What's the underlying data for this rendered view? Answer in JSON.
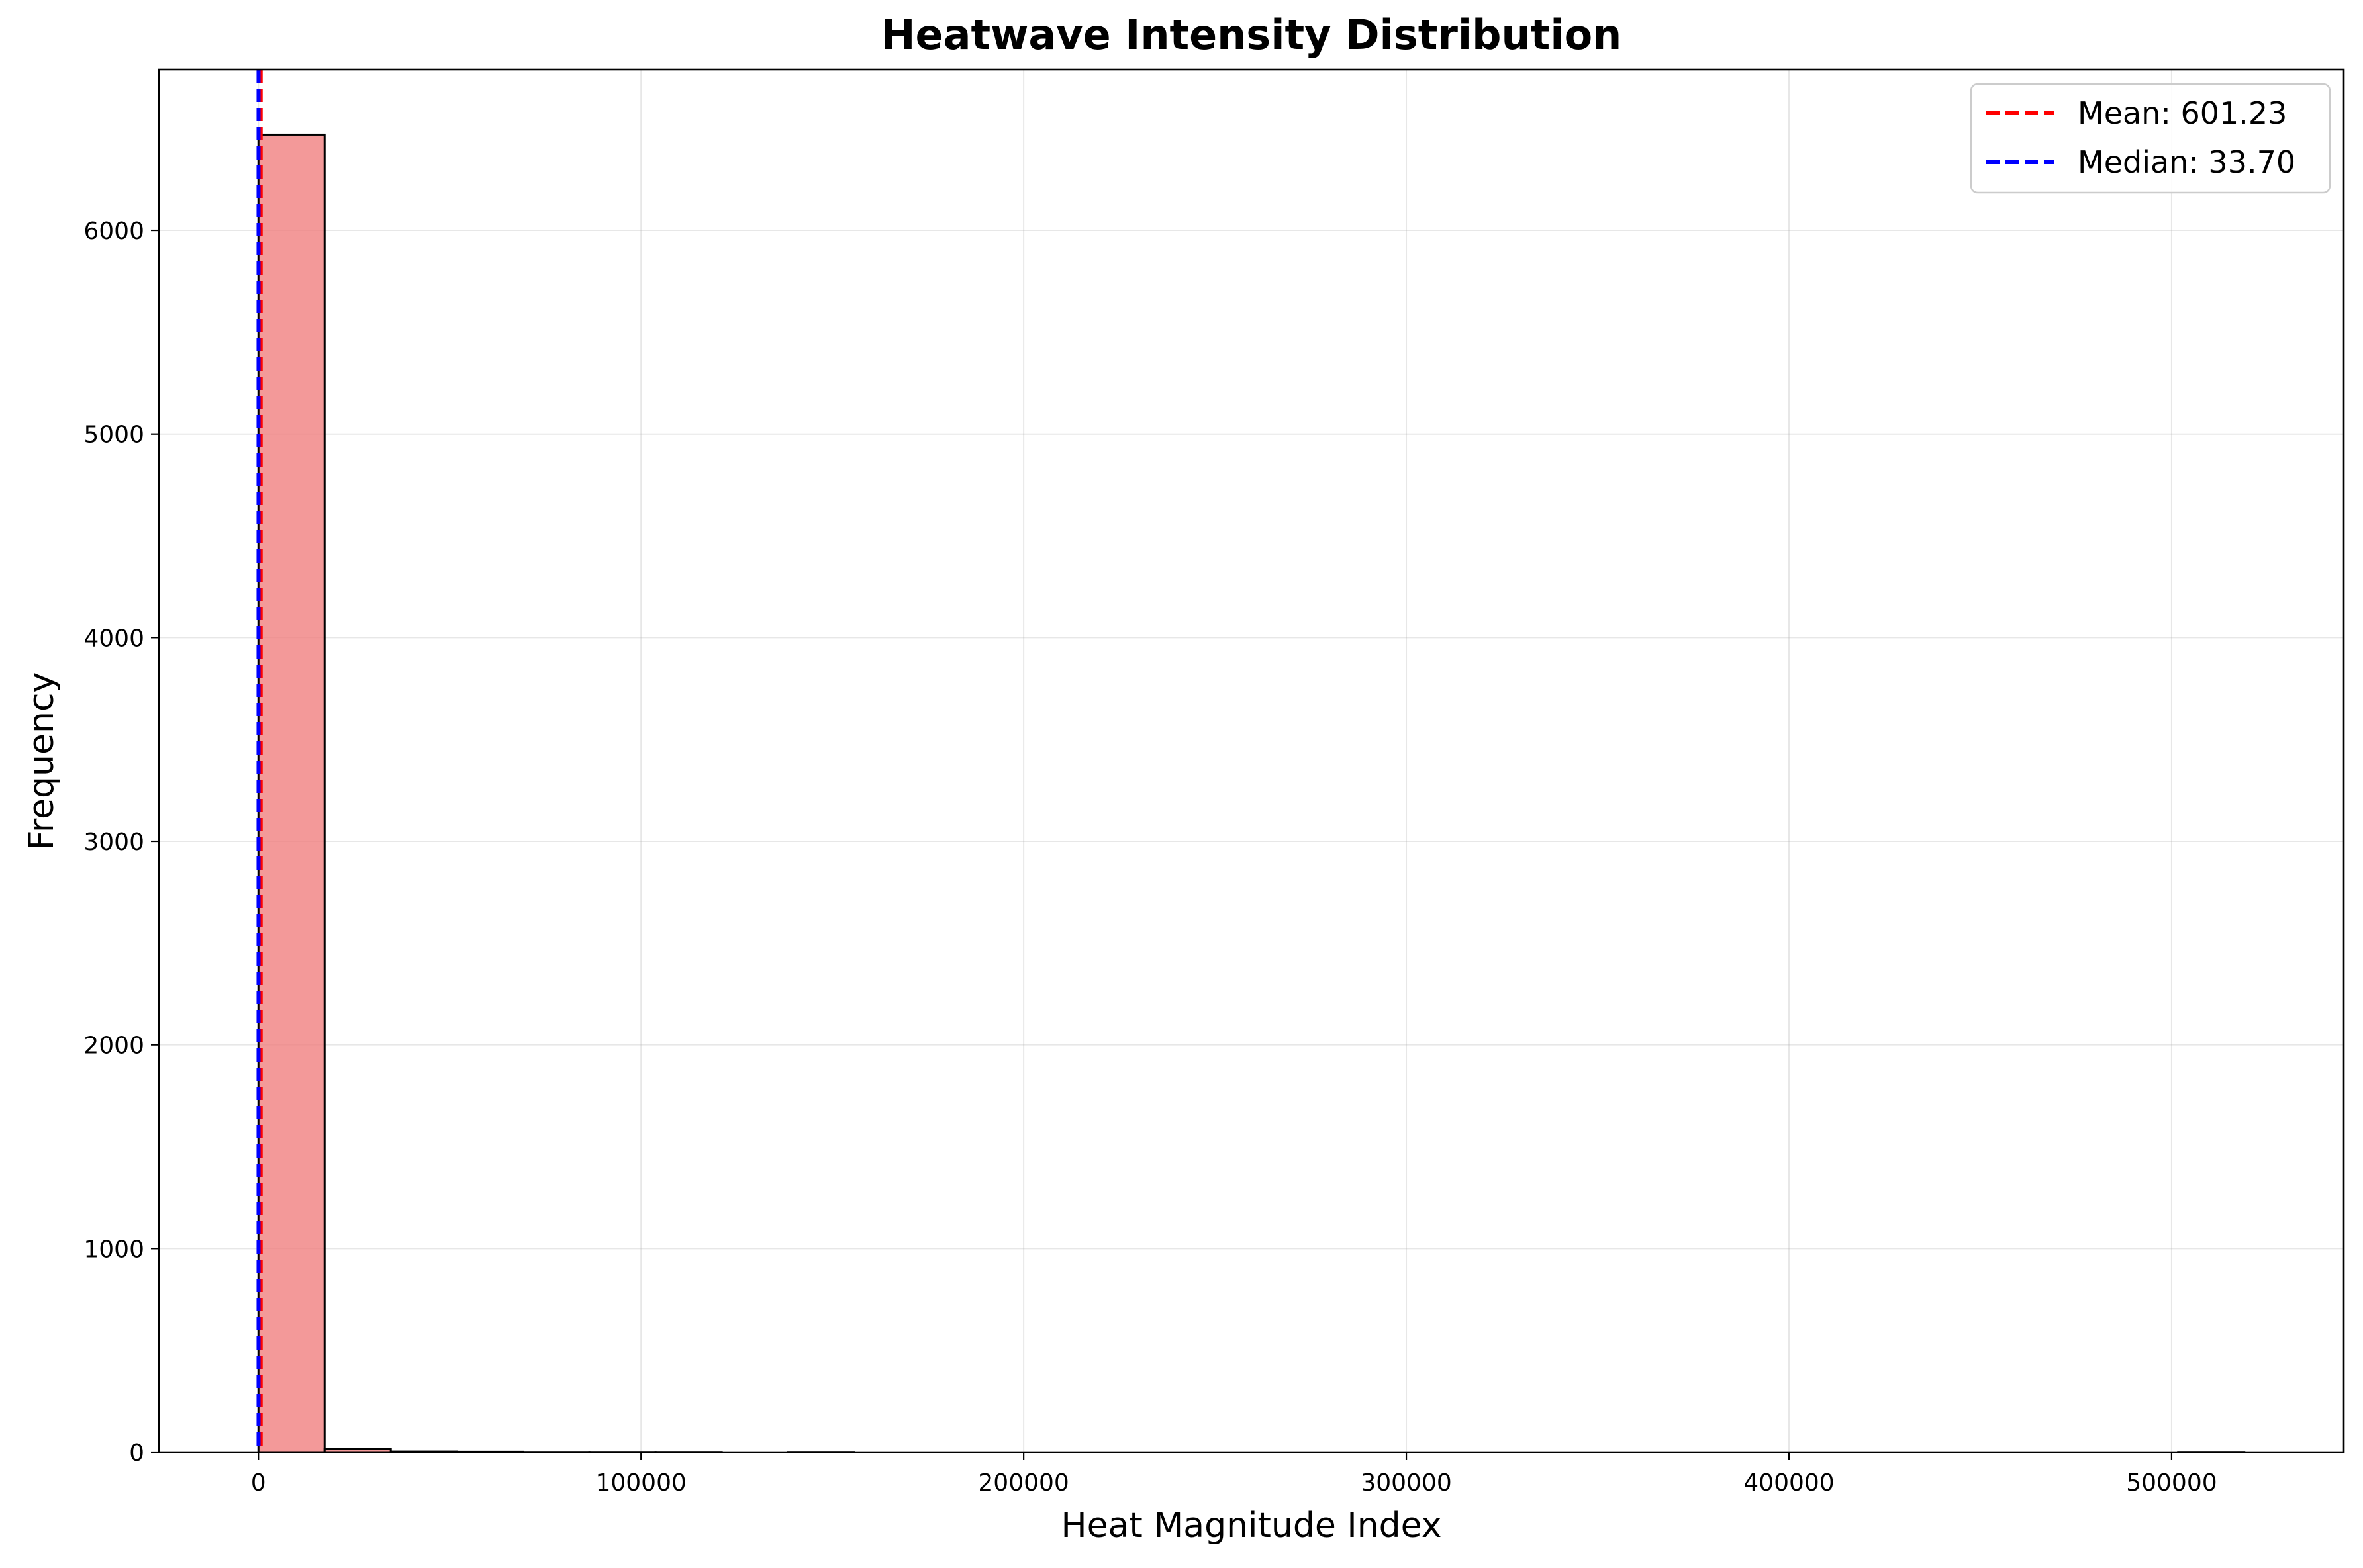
{
  "chart_data": {
    "type": "bar",
    "subtype": "histogram",
    "title": "Heatwave Intensity Distribution",
    "xlabel": "Heat Magnitude Index",
    "ylabel": "Frequency",
    "xlim": [
      -26000,
      545000
    ],
    "ylim": [
      0,
      6790
    ],
    "x_ticks": [
      0,
      100000,
      200000,
      300000,
      400000,
      500000
    ],
    "x_tick_labels": [
      "0",
      "100000",
      "200000",
      "300000",
      "400000",
      "500000"
    ],
    "y_ticks": [
      0,
      1000,
      2000,
      3000,
      4000,
      5000,
      6000
    ],
    "y_tick_labels": [
      "0",
      "1000",
      "2000",
      "3000",
      "4000",
      "5000",
      "6000"
    ],
    "grid": true,
    "legend_position": "upper-right",
    "bin_width": 17300,
    "bins": [
      {
        "x0": 0,
        "x1": 17300,
        "count": 6470
      },
      {
        "x0": 17300,
        "x1": 34600,
        "count": 15
      },
      {
        "x0": 34600,
        "x1": 51900,
        "count": 3
      },
      {
        "x0": 51900,
        "x1": 69200,
        "count": 2
      },
      {
        "x0": 69200,
        "x1": 86500,
        "count": 1
      },
      {
        "x0": 86500,
        "x1": 103800,
        "count": 1
      },
      {
        "x0": 103800,
        "x1": 121100,
        "count": 1
      },
      {
        "x0": 121100,
        "x1": 138400,
        "count": 0
      },
      {
        "x0": 138400,
        "x1": 155700,
        "count": 1
      },
      {
        "x0": 155700,
        "x1": 173000,
        "count": 0
      },
      {
        "x0": 173000,
        "x1": 190300,
        "count": 0
      },
      {
        "x0": 190300,
        "x1": 207600,
        "count": 0
      },
      {
        "x0": 207600,
        "x1": 224900,
        "count": 0
      },
      {
        "x0": 224900,
        "x1": 242200,
        "count": 0
      },
      {
        "x0": 242200,
        "x1": 259500,
        "count": 0
      },
      {
        "x0": 259500,
        "x1": 276800,
        "count": 0
      },
      {
        "x0": 276800,
        "x1": 294100,
        "count": 0
      },
      {
        "x0": 294100,
        "x1": 311400,
        "count": 0
      },
      {
        "x0": 311400,
        "x1": 328700,
        "count": 0
      },
      {
        "x0": 328700,
        "x1": 346000,
        "count": 0
      },
      {
        "x0": 346000,
        "x1": 363300,
        "count": 0
      },
      {
        "x0": 363300,
        "x1": 380600,
        "count": 0
      },
      {
        "x0": 380600,
        "x1": 397900,
        "count": 0
      },
      {
        "x0": 397900,
        "x1": 415200,
        "count": 0
      },
      {
        "x0": 415200,
        "x1": 432500,
        "count": 0
      },
      {
        "x0": 432500,
        "x1": 449800,
        "count": 0
      },
      {
        "x0": 449800,
        "x1": 467100,
        "count": 0
      },
      {
        "x0": 467100,
        "x1": 484400,
        "count": 0
      },
      {
        "x0": 484400,
        "x1": 501700,
        "count": 0
      },
      {
        "x0": 501700,
        "x1": 519000,
        "count": 1
      }
    ],
    "reference_lines": [
      {
        "name": "Mean: 601.23",
        "value": 601.23,
        "color": "#ff0000",
        "style": "dashed"
      },
      {
        "name": "Median: 33.70",
        "value": 33.7,
        "color": "#0000ff",
        "style": "dashed"
      }
    ],
    "colors": {
      "bar_fill": "#f08080",
      "bar_edge": "#000000",
      "grid": "#b0b0b0"
    }
  }
}
